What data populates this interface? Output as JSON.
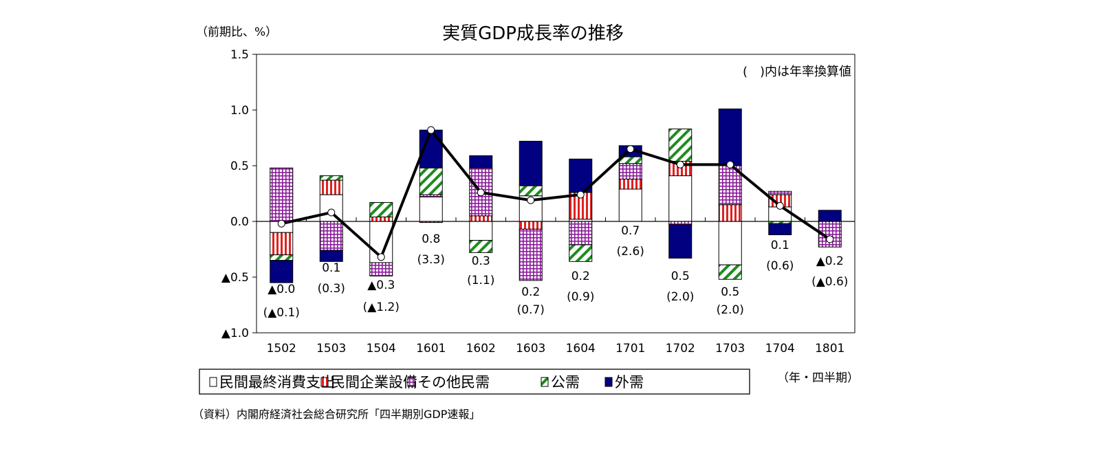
{
  "chart_data": {
    "type": "bar",
    "stacked": true,
    "title": "実質GDP成長率の推移",
    "ylabel": "（前期比、%）",
    "xlabel": "（年・四半期）",
    "note": "(　)内は年率換算値",
    "source": "（資料）内閣府経済社会総合研究所「四半期別GDP速報」",
    "ylim": [
      -1.0,
      1.5
    ],
    "yticks": [
      1.5,
      1.0,
      0.5,
      0.0,
      -0.5,
      -1.0
    ],
    "ytick_labels": [
      "1.5",
      "1.0",
      "0.5",
      "0.0",
      "▲0.5",
      "▲1.0"
    ],
    "categories": [
      "1502",
      "1503",
      "1504",
      "1601",
      "1602",
      "1603",
      "1604",
      "1701",
      "1702",
      "1703",
      "1704",
      "1801"
    ],
    "series": [
      {
        "name": "民間最終消費支出",
        "pattern": "solid-white",
        "color": "#ffffff",
        "values": [
          -0.1,
          0.24,
          -0.37,
          0.22,
          -0.17,
          0.23,
          0.02,
          0.29,
          0.41,
          -0.39,
          0.13,
          0.0
        ]
      },
      {
        "name": "民間企業設備",
        "pattern": "vertical-stripes",
        "color": "#e02020",
        "values": [
          -0.2,
          0.13,
          0.04,
          -0.01,
          0.05,
          -0.07,
          0.24,
          0.09,
          0.13,
          0.15,
          0.11,
          0.0
        ]
      },
      {
        "name": "その他民需",
        "pattern": "grid",
        "color": "#8b1a9b",
        "values": [
          0.48,
          -0.26,
          -0.12,
          0.02,
          0.43,
          -0.46,
          -0.21,
          0.14,
          -0.03,
          0.35,
          0.03,
          -0.23
        ]
      },
      {
        "name": "公需",
        "pattern": "diagonal-stripes",
        "color": "#1e8c1e",
        "values": [
          -0.05,
          0.04,
          0.13,
          0.24,
          -0.11,
          0.09,
          -0.15,
          0.06,
          0.29,
          -0.13,
          -0.02,
          0.0
        ]
      },
      {
        "name": "外需",
        "pattern": "solid",
        "color": "#000080",
        "values": [
          -0.2,
          -0.1,
          0.0,
          0.34,
          0.11,
          0.4,
          0.3,
          0.1,
          -0.3,
          0.51,
          -0.1,
          0.1
        ]
      }
    ],
    "line": {
      "name": "GDP",
      "color": "#000000",
      "values": [
        -0.02,
        0.08,
        -0.32,
        0.82,
        0.26,
        0.19,
        0.24,
        0.65,
        0.51,
        0.51,
        0.14,
        -0.16
      ]
    },
    "data_labels": [
      {
        "q": "▲0.0",
        "a": "(▲0.1)"
      },
      {
        "q": "0.1",
        "a": "(0.3)"
      },
      {
        "q": "▲0.3",
        "a": "(▲1.2)"
      },
      {
        "q": "0.8",
        "a": "(3.3)"
      },
      {
        "q": "0.3",
        "a": "(1.1)"
      },
      {
        "q": "0.2",
        "a": "(0.7)"
      },
      {
        "q": "0.2",
        "a": "(0.9)"
      },
      {
        "q": "0.7",
        "a": "(2.6)"
      },
      {
        "q": "0.5",
        "a": "(2.0)"
      },
      {
        "q": "0.5",
        "a": "(2.0)"
      },
      {
        "q": "0.1",
        "a": "(0.6)"
      },
      {
        "q": "▲0.2",
        "a": "(▲0.6)"
      }
    ],
    "legend": {
      "placement": "bottom"
    },
    "grid": false
  }
}
